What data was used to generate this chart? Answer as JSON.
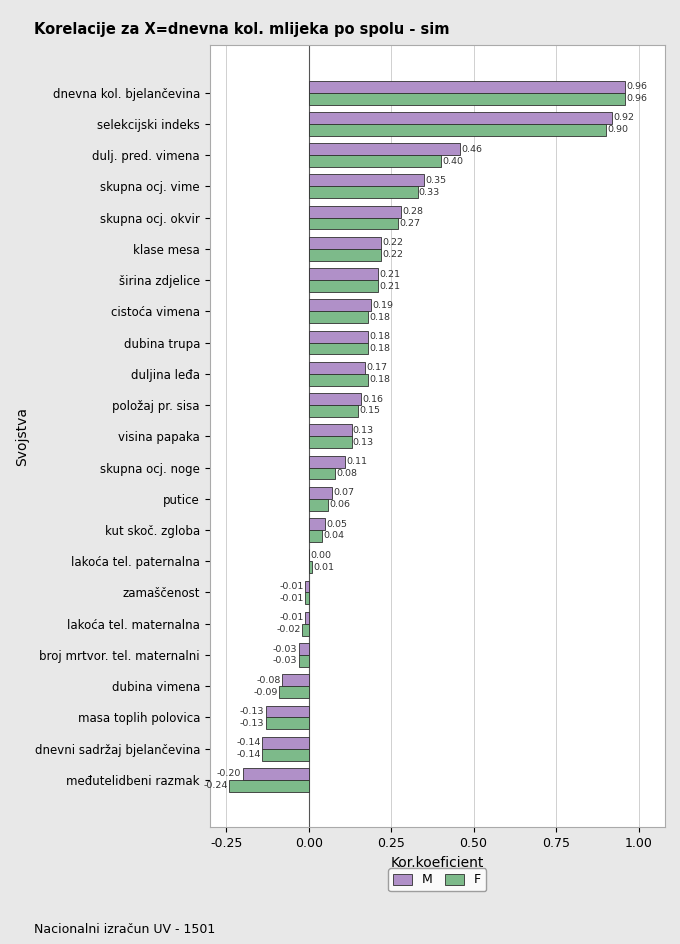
{
  "title": "Korelacije za X=dnevna kol. mlijeka po spolu - sim",
  "xlabel": "Kor.koeficient",
  "ylabel": "Svojstva",
  "footnote": "Nacionalni izračun UV - 1501",
  "bar_color_M": "#b090c8",
  "bar_color_F": "#7dba8a",
  "categories": [
    "dnevna kol. bjelančevina",
    "selekcijski indeks",
    "dulj. pred. vimena",
    "skupna ocj. vime",
    "skupna ocj. okvir",
    "klase mesa",
    "širina zdjelice",
    "cistoća vimena",
    "dubina trupa",
    "duljina leđa",
    "položaj pr. sisa",
    "visina papaka",
    "skupna ocj. noge",
    "putice",
    "kut skoč. zgloba",
    "lakoća tel. paternalna",
    "zamaščenost",
    "lakoća tel. maternalna",
    "broj mrtvor. tel. maternalni",
    "dubina vimena",
    "masa toplih polovica",
    "dnevni sadržaj bjelančevina",
    "međutelidbeni razmak"
  ],
  "values_M": [
    0.96,
    0.92,
    0.46,
    0.35,
    0.28,
    0.22,
    0.21,
    0.19,
    0.18,
    0.17,
    0.16,
    0.13,
    0.11,
    0.07,
    0.05,
    0.0,
    -0.01,
    -0.01,
    -0.03,
    -0.08,
    -0.13,
    -0.14,
    -0.2
  ],
  "values_F": [
    0.96,
    0.9,
    0.4,
    0.33,
    0.27,
    0.22,
    0.21,
    0.18,
    0.18,
    0.18,
    0.15,
    0.13,
    0.08,
    0.06,
    0.04,
    0.01,
    -0.01,
    -0.02,
    -0.03,
    -0.09,
    -0.13,
    -0.14,
    -0.24
  ],
  "labels_M": [
    "0.96",
    "0.92",
    "0.46",
    "0.35",
    "0.28",
    "0.22",
    "0.21",
    "0.19",
    "0.18",
    "0.17",
    "0.16",
    "0.13",
    "0.11",
    "0.07",
    "0.05",
    "0.00",
    "-0.01",
    "-0.01",
    "-0.03",
    "-0.08",
    "-0.13",
    "-0.14",
    "-0.20"
  ],
  "labels_F": [
    "0.96",
    "0.90",
    "0.40",
    "0.33",
    "0.27",
    "0.22",
    "0.21",
    "0.18",
    "0.18",
    "0.18",
    "0.15",
    "0.13",
    "0.08",
    "0.06",
    "0.04",
    "0.01",
    "-0.01",
    "-0.02",
    "-0.03",
    "-0.09",
    "-0.13",
    "-0.14",
    "-0.24"
  ],
  "xlim": [
    -0.3,
    1.08
  ],
  "xticks": [
    -0.25,
    0.0,
    0.25,
    0.5,
    0.75,
    1.0
  ],
  "xtick_labels": [
    "-0.25",
    "0.00",
    "0.25",
    "0.50",
    "0.75",
    "1.00"
  ],
  "bg_color": "#e8e8e8",
  "plot_bg": "#ffffff",
  "bar_height": 0.38
}
